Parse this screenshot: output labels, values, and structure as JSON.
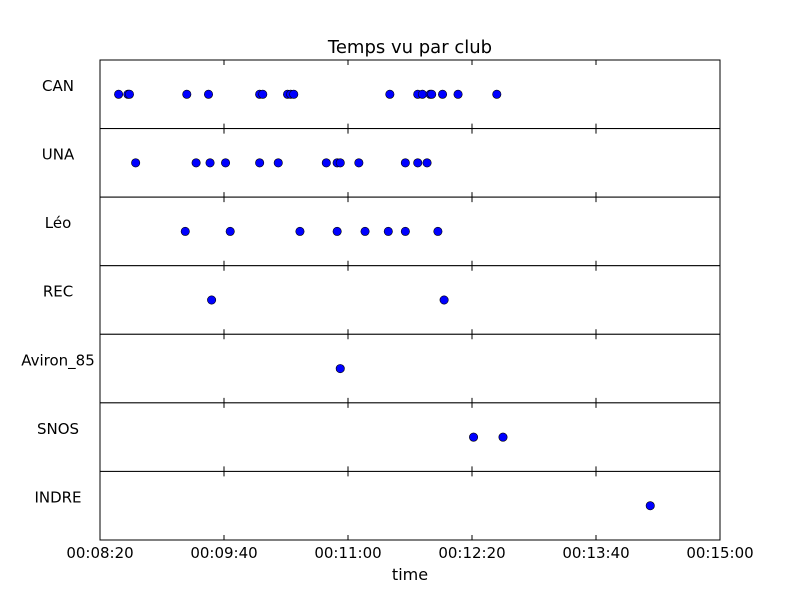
{
  "chart_data": {
    "type": "scatter",
    "title": "Temps vu par club",
    "xlabel": "time",
    "ylabel": "",
    "grid": false,
    "x_unit": "time of day (HH:MM:SS)",
    "xlim": [
      "00:08:20",
      "00:15:00"
    ],
    "x_ticks": [
      "00:08:20",
      "00:09:40",
      "00:11:00",
      "00:12:20",
      "00:13:40",
      "00:15:00"
    ],
    "marker_color": "#0000ff",
    "marker_edge_color": "#000000",
    "panels": [
      {
        "name": "CAN",
        "times": [
          "00:08:32",
          "00:08:38",
          "00:08:39",
          "00:09:16",
          "00:09:30",
          "00:10:03",
          "00:10:05",
          "00:10:21",
          "00:10:23",
          "00:10:25",
          "00:11:27",
          "00:11:45",
          "00:11:48",
          "00:11:53",
          "00:11:54",
          "00:12:01",
          "00:12:11",
          "00:12:36"
        ]
      },
      {
        "name": "UNA",
        "times": [
          "00:08:43",
          "00:09:22",
          "00:09:31",
          "00:09:41",
          "00:10:03",
          "00:10:15",
          "00:10:46",
          "00:10:53",
          "00:10:55",
          "00:11:07",
          "00:11:37",
          "00:11:45",
          "00:11:51"
        ]
      },
      {
        "name": "Léo",
        "times": [
          "00:09:15",
          "00:09:44",
          "00:10:29",
          "00:10:53",
          "00:11:11",
          "00:11:26",
          "00:11:37",
          "00:11:58"
        ]
      },
      {
        "name": "REC",
        "times": [
          "00:09:32",
          "00:12:02"
        ]
      },
      {
        "name": "Aviron_85",
        "times": [
          "00:10:55"
        ]
      },
      {
        "name": "SNOS",
        "times": [
          "00:12:21",
          "00:12:40"
        ]
      },
      {
        "name": "INDRE",
        "times": [
          "00:14:15"
        ]
      }
    ]
  }
}
